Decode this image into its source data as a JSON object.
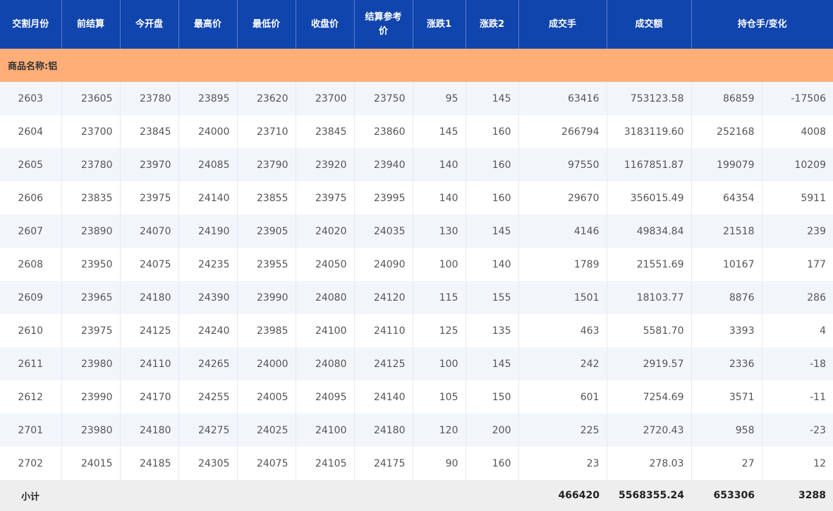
{
  "headers": [
    "交割月份",
    "前结算",
    "今开盘",
    "最高价",
    "最低价",
    "收盘价",
    "结算参考价",
    "涨跌1",
    "涨跌2",
    "成交手",
    "成交额",
    "持仓手/变化"
  ],
  "category": "商品名称:铝",
  "rows": [
    [
      "2603",
      "23605",
      "23780",
      "23895",
      "23620",
      "23700",
      "23750",
      "95",
      "145",
      "63416",
      "753123.58",
      "86859",
      "-17506"
    ],
    [
      "2604",
      "23700",
      "23845",
      "24000",
      "23710",
      "23845",
      "23860",
      "145",
      "160",
      "266794",
      "3183119.60",
      "252168",
      "4008"
    ],
    [
      "2605",
      "23780",
      "23970",
      "24085",
      "23790",
      "23920",
      "23940",
      "140",
      "160",
      "97550",
      "1167851.87",
      "199079",
      "10209"
    ],
    [
      "2606",
      "23835",
      "23975",
      "24140",
      "23855",
      "23975",
      "23995",
      "140",
      "160",
      "29670",
      "356015.49",
      "64354",
      "5911"
    ],
    [
      "2607",
      "23890",
      "24070",
      "24190",
      "23905",
      "24020",
      "24035",
      "130",
      "145",
      "4146",
      "49834.84",
      "21518",
      "239"
    ],
    [
      "2608",
      "23950",
      "24075",
      "24235",
      "23955",
      "24050",
      "24090",
      "100",
      "140",
      "1789",
      "21551.69",
      "10167",
      "177"
    ],
    [
      "2609",
      "23965",
      "24180",
      "24390",
      "23990",
      "24080",
      "24120",
      "115",
      "155",
      "1501",
      "18103.77",
      "8876",
      "286"
    ],
    [
      "2610",
      "23975",
      "24125",
      "24240",
      "23985",
      "24100",
      "24110",
      "125",
      "135",
      "463",
      "5581.70",
      "3393",
      "4"
    ],
    [
      "2611",
      "23980",
      "24110",
      "24265",
      "24000",
      "24080",
      "24125",
      "100",
      "145",
      "242",
      "2919.57",
      "2336",
      "-18"
    ],
    [
      "2612",
      "23990",
      "24170",
      "24255",
      "24005",
      "24095",
      "24140",
      "105",
      "150",
      "601",
      "7254.69",
      "3571",
      "-11"
    ],
    [
      "2701",
      "23980",
      "24180",
      "24275",
      "24025",
      "24100",
      "24180",
      "120",
      "200",
      "225",
      "2720.43",
      "958",
      "-23"
    ],
    [
      "2702",
      "24015",
      "24185",
      "24305",
      "24075",
      "24105",
      "24175",
      "90",
      "160",
      "23",
      "278.03",
      "27",
      "12"
    ]
  ],
  "subtotal": {
    "label": "小计",
    "volume": "466420",
    "turnover": "5568355.24",
    "open_interest": "653306",
    "change": "3288"
  },
  "colors": {
    "header": "#1045ae",
    "category": "#ffae78",
    "stripe": "#f2f5fa",
    "subtotal": "#eeeeee"
  }
}
